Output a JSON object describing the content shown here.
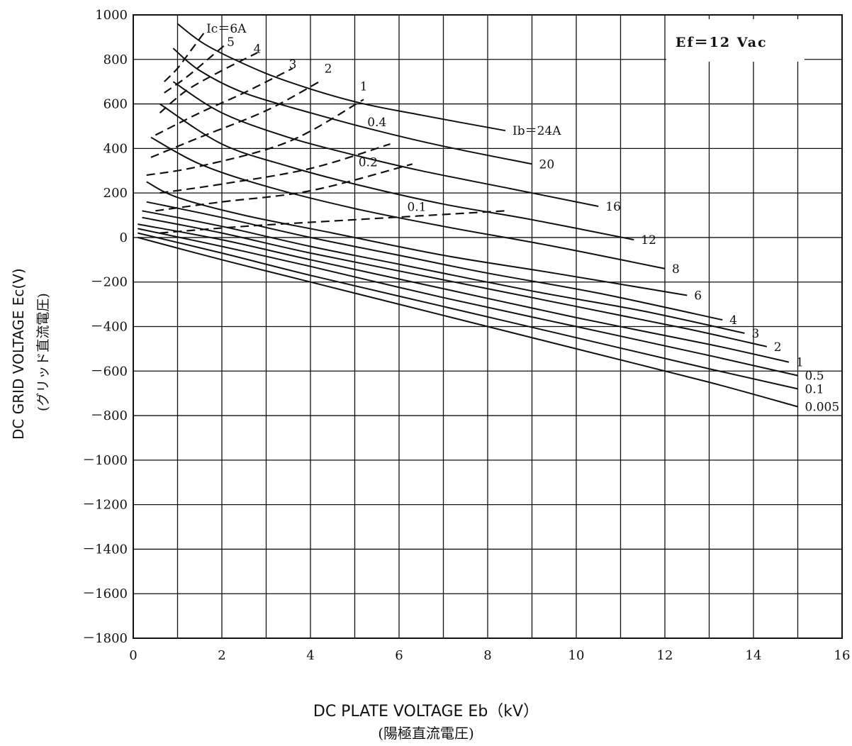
{
  "chart_data": {
    "type": "line",
    "x_range": [
      0,
      16
    ],
    "y_range": [
      -1800,
      1000
    ],
    "x_ticks": [
      "0",
      "2",
      "4",
      "6",
      "8",
      "10",
      "12",
      "14",
      "16"
    ],
    "y_ticks": [
      "1000",
      "800",
      "600",
      "400",
      "200",
      "0",
      "－200",
      "－400",
      "－600",
      "－800",
      "－1000",
      "－1200",
      "－1400",
      "－1600",
      "－1800"
    ],
    "grid": true,
    "xlabel": "DC PLATE VOLTAGE Eb（kV）",
    "xlabel_sub": "(陽極直流電圧)",
    "ylabel": "DC GRID VOLTAGE Ec(V)",
    "ylabel_sub": "(グリッド直流電圧)",
    "annotation": "Ef＝12 Vac",
    "ib_series": [
      {
        "label": "Ib＝24A",
        "x": [
          1.0,
          1.6,
          2.5,
          3.5,
          5.0,
          6.5,
          8.4
        ],
        "y": [
          960,
          870,
          780,
          700,
          610,
          550,
          480
        ]
      },
      {
        "label": "20",
        "x": [
          0.9,
          1.5,
          2.5,
          4.0,
          5.5,
          7.0,
          9.0
        ],
        "y": [
          850,
          750,
          650,
          560,
          480,
          410,
          330
        ]
      },
      {
        "label": "16",
        "x": [
          0.9,
          2.0,
          3.5,
          5.0,
          6.5,
          8.5,
          10.5
        ],
        "y": [
          700,
          560,
          450,
          370,
          300,
          220,
          140
        ]
      },
      {
        "label": "12",
        "x": [
          0.6,
          2.0,
          3.5,
          5.0,
          7.0,
          9.0,
          11.3
        ],
        "y": [
          600,
          420,
          320,
          240,
          150,
          80,
          -10
        ]
      },
      {
        "label": "8",
        "x": [
          0.4,
          1.5,
          3.0,
          5.0,
          7.0,
          9.5,
          12.0
        ],
        "y": [
          450,
          330,
          230,
          130,
          50,
          -40,
          -140
        ]
      },
      {
        "label": "6",
        "x": [
          0.3,
          1.0,
          2.5,
          4.5,
          7.0,
          9.5,
          12.5
        ],
        "y": [
          250,
          180,
          100,
          20,
          -80,
          -160,
          -260
        ]
      },
      {
        "label": "4",
        "x": [
          0.3,
          2.0,
          4.0,
          6.0,
          8.0,
          10.5,
          13.3
        ],
        "y": [
          160,
          90,
          0,
          -80,
          -160,
          -250,
          -370
        ]
      },
      {
        "label": "3",
        "x": [
          0.2,
          2.0,
          4.0,
          6.0,
          9.0,
          11.5,
          13.8
        ],
        "y": [
          120,
          50,
          -40,
          -120,
          -240,
          -330,
          -430
        ]
      },
      {
        "label": "2",
        "x": [
          0.2,
          2.0,
          4.0,
          7.0,
          10.0,
          12.5,
          14.3
        ],
        "y": [
          90,
          20,
          -70,
          -190,
          -310,
          -410,
          -490
        ]
      },
      {
        "label": "1",
        "x": [
          0.1,
          2.0,
          4.0,
          7.0,
          10.0,
          13.0,
          14.8
        ],
        "y": [
          60,
          -10,
          -100,
          -230,
          -360,
          -480,
          -560
        ]
      },
      {
        "label": "0.5",
        "x": [
          0.1,
          2.0,
          4.0,
          7.0,
          10.0,
          13.0,
          15.0
        ],
        "y": [
          40,
          -40,
          -130,
          -270,
          -400,
          -530,
          -620
        ]
      },
      {
        "label": "0.1",
        "x": [
          0.1,
          2.0,
          4.0,
          7.0,
          10.0,
          13.0,
          15.0
        ],
        "y": [
          20,
          -70,
          -170,
          -310,
          -450,
          -590,
          -680
        ]
      },
      {
        "label": "0.005",
        "x": [
          0.1,
          2.0,
          4.0,
          7.0,
          10.0,
          13.0,
          15.0
        ],
        "y": [
          0,
          -100,
          -200,
          -350,
          -500,
          -650,
          -760
        ]
      }
    ],
    "ic_series": [
      {
        "label": "Ic＝6A",
        "x": [
          0.7,
          1.0,
          1.3,
          1.6
        ],
        "y": [
          700,
          760,
          840,
          920
        ]
      },
      {
        "label": "5",
        "x": [
          0.7,
          1.2,
          1.8,
          2.1
        ],
        "y": [
          650,
          720,
          820,
          870
        ]
      },
      {
        "label": "4",
        "x": [
          0.6,
          1.2,
          2.0,
          2.8
        ],
        "y": [
          560,
          660,
          750,
          830
        ]
      },
      {
        "label": "3",
        "x": [
          0.5,
          1.5,
          2.5,
          3.6
        ],
        "y": [
          460,
          560,
          650,
          760
        ]
      },
      {
        "label": "2",
        "x": [
          0.4,
          1.5,
          3.0,
          4.2
        ],
        "y": [
          360,
          450,
          570,
          700
        ]
      },
      {
        "label": "1",
        "x": [
          0.3,
          1.5,
          3.5,
          5.2
        ],
        "y": [
          280,
          320,
          430,
          620
        ]
      },
      {
        "label": "0.4",
        "x": [
          0.6,
          2.0,
          4.0,
          5.8
        ],
        "y": [
          200,
          240,
          310,
          420
        ]
      },
      {
        "label": "0.2",
        "x": [
          0.5,
          2.0,
          4.0,
          6.3
        ],
        "y": [
          120,
          160,
          210,
          330
        ]
      },
      {
        "label": "0.1",
        "x": [
          0.6,
          2.5,
          5.0,
          8.4
        ],
        "y": [
          20,
          50,
          80,
          120
        ]
      }
    ],
    "ic_label_positions": [
      {
        "label": "Ic＝6A",
        "x": 2.1,
        "y": 920
      },
      {
        "label": "5",
        "x": 2.2,
        "y": 860
      },
      {
        "label": "4",
        "x": 2.8,
        "y": 830
      },
      {
        "label": "3",
        "x": 3.6,
        "y": 760
      },
      {
        "label": "2",
        "x": 4.4,
        "y": 740
      },
      {
        "label": "1",
        "x": 5.2,
        "y": 660
      },
      {
        "label": "0.4",
        "x": 5.5,
        "y": 500
      },
      {
        "label": "0.2",
        "x": 5.3,
        "y": 320
      },
      {
        "label": "0.1",
        "x": 6.4,
        "y": 120
      }
    ]
  }
}
